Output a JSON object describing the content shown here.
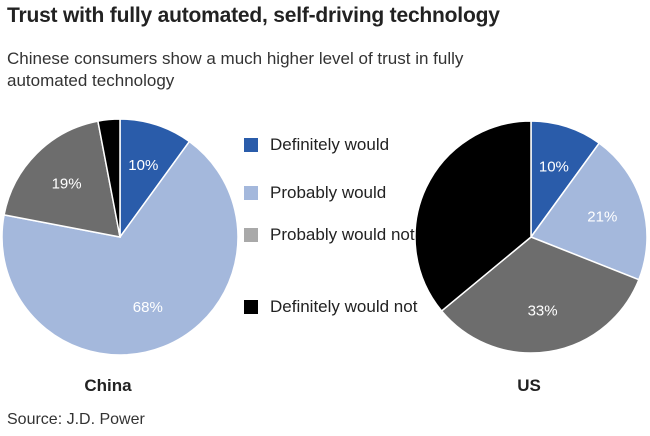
{
  "title": "Trust with fully automated, self-driving technology",
  "subtitle": "Chinese consumers show a much higher level of trust in fully automated technology",
  "source": "Source: J.D. Power",
  "colors": {
    "definitely_would": "#2a5caa",
    "probably_would": "#a4b8dc",
    "probably_would_not": "#6d6d6d",
    "definitely_would_not": "#000000"
  },
  "legend": [
    {
      "label": "Definitely would",
      "color": "#2a5caa"
    },
    {
      "label": "Probably would",
      "color": "#a4b8dc"
    },
    {
      "label": "Probably would not",
      "color": "#a9a9a9"
    },
    {
      "label": "Definitely would not",
      "color": "#000000"
    }
  ],
  "chart_data": [
    {
      "type": "pie",
      "title": "China",
      "categories": [
        "Definitely would",
        "Probably would",
        "Probably would not",
        "Definitely would not"
      ],
      "values": [
        10,
        68,
        19,
        3
      ],
      "data_labels": [
        "10%",
        "68%",
        "19%",
        ""
      ]
    },
    {
      "type": "pie",
      "title": "US",
      "categories": [
        "Definitely would",
        "Probably would",
        "Probably would not",
        "Definitely would not"
      ],
      "values": [
        10,
        21,
        33,
        36
      ],
      "data_labels": [
        "10%",
        "21%",
        "33%",
        ""
      ]
    }
  ]
}
